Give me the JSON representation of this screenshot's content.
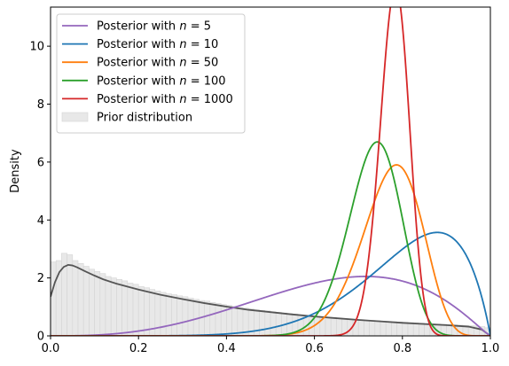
{
  "chart_data": {
    "type": "line",
    "title": "",
    "xlabel": "",
    "ylabel": "Density",
    "xlim": [
      0,
      1
    ],
    "ylim": [
      0,
      11.35
    ],
    "x_ticks": [
      "0.0",
      "0.2",
      "0.4",
      "0.6",
      "0.8",
      "1.0"
    ],
    "y_ticks": [
      "0",
      "2",
      "4",
      "6",
      "8",
      "10"
    ],
    "grid": false,
    "legend_position": "top-left",
    "series": [
      {
        "name": "Posterior with $n = 5$",
        "label_prefix": "Posterior with ",
        "label_n": "n",
        "label_value": " = 5",
        "color": "#9467bd",
        "alpha": 3.9,
        "beta": 2.15
      },
      {
        "name": "Posterior with $n = 10$",
        "label_prefix": "Posterior with ",
        "label_n": "n",
        "label_value": " = 10",
        "color": "#1f77b4",
        "alpha": 8.0,
        "beta": 1.96
      },
      {
        "name": "Posterior with $n = 50$",
        "label_prefix": "Posterior with ",
        "label_n": "n",
        "label_value": " = 50",
        "color": "#ff7f0e",
        "alpha": 29.0,
        "beta": 8.6
      },
      {
        "name": "Posterior with $n = 100$",
        "label_prefix": "Posterior with ",
        "label_n": "n",
        "label_value": " = 100",
        "color": "#2ca02c",
        "alpha": 40.0,
        "beta": 14.5
      },
      {
        "name": "Posterior with $n = 1000$",
        "label_prefix": "Posterior with ",
        "label_n": "n",
        "label_value": " = 1000",
        "color": "#d62728",
        "alpha": 121.0,
        "beta": 34.0
      }
    ],
    "prior_kde": {
      "name": "Prior distribution (density curve)",
      "color": "#555555",
      "x": [
        0.0,
        0.01,
        0.02,
        0.03,
        0.04,
        0.05,
        0.06,
        0.08,
        0.1,
        0.12,
        0.15,
        0.2,
        0.25,
        0.3,
        0.35,
        0.4,
        0.45,
        0.5,
        0.55,
        0.6,
        0.65,
        0.7,
        0.75,
        0.8,
        0.85,
        0.9,
        0.95,
        0.98,
        1.0
      ],
      "y": [
        1.35,
        1.85,
        2.2,
        2.38,
        2.45,
        2.43,
        2.37,
        2.22,
        2.08,
        1.95,
        1.8,
        1.6,
        1.42,
        1.27,
        1.13,
        1.01,
        0.9,
        0.82,
        0.74,
        0.67,
        0.61,
        0.55,
        0.5,
        0.45,
        0.41,
        0.37,
        0.32,
        0.22,
        0.0
      ]
    },
    "prior_histogram": {
      "name": "Prior distribution",
      "bin_width": 0.0125,
      "heights": [
        2.55,
        2.6,
        2.85,
        2.8,
        2.6,
        2.5,
        2.4,
        2.3,
        2.22,
        2.15,
        2.05,
        2.0,
        1.95,
        1.9,
        1.82,
        1.78,
        1.7,
        1.66,
        1.6,
        1.55,
        1.5,
        1.45,
        1.42,
        1.38,
        1.35,
        1.3,
        1.26,
        1.22,
        1.2,
        1.15,
        1.12,
        1.08,
        1.05,
        1.02,
        0.98,
        0.96,
        0.93,
        0.9,
        0.88,
        0.86,
        0.83,
        0.81,
        0.79,
        0.77,
        0.75,
        0.73,
        0.71,
        0.69,
        0.68,
        0.66,
        0.64,
        0.63,
        0.61,
        0.6,
        0.58,
        0.57,
        0.56,
        0.54,
        0.53,
        0.52,
        0.51,
        0.5,
        0.49,
        0.48,
        0.47,
        0.46,
        0.45,
        0.44,
        0.43,
        0.42,
        0.41,
        0.4,
        0.39,
        0.38,
        0.37,
        0.36,
        0.35,
        0.34,
        0.32,
        0.28
      ]
    }
  }
}
